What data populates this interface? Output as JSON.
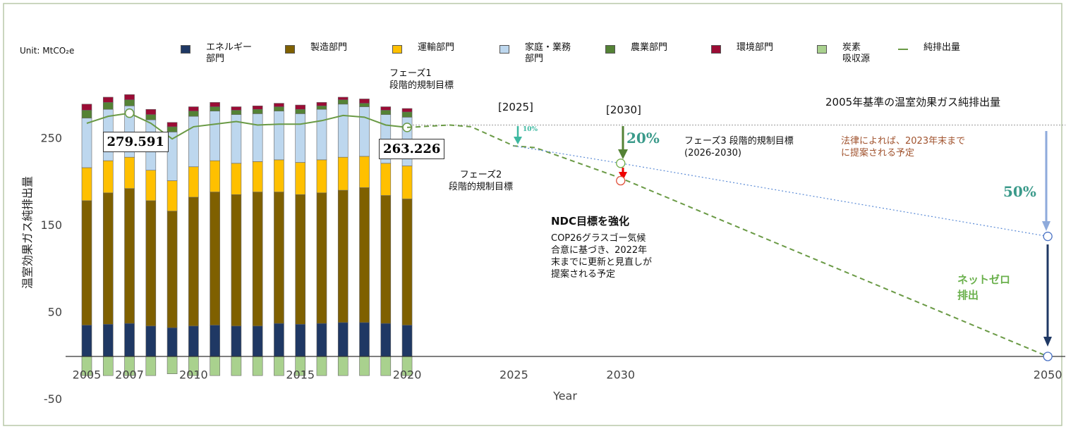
{
  "chart_data": {
    "type": "bar",
    "stacked": true,
    "unit_label": "Unit: MtCO₂e",
    "y_label": "温室効果ガス純排出量",
    "x_label": "Year",
    "x": [
      2005,
      2006,
      2007,
      2008,
      2009,
      2010,
      2011,
      2012,
      2013,
      2014,
      2015,
      2016,
      2017,
      2018,
      2019,
      2020
    ],
    "series": [
      {
        "name": "エネルギー\n部門",
        "color": "#1f3864",
        "values": [
          36,
          37,
          38,
          35,
          33,
          35,
          36,
          35,
          35,
          38,
          37,
          38,
          39,
          39,
          38,
          36
        ]
      },
      {
        "name": "製造部門",
        "color": "#7f6000",
        "values": [
          143,
          151,
          155,
          144,
          134,
          148,
          153,
          151,
          154,
          151,
          149,
          150,
          152,
          155,
          147,
          145
        ]
      },
      {
        "name": "運輸部門",
        "color": "#ffc000",
        "values": [
          38,
          37,
          36,
          35,
          35,
          35,
          36,
          36,
          35,
          37,
          37,
          38,
          38,
          36,
          37,
          38
        ]
      },
      {
        "name": "家庭・業務\n部門",
        "color": "#bdd7ee",
        "values": [
          57,
          59,
          59,
          58,
          56,
          58,
          57,
          56,
          55,
          56,
          56,
          58,
          61,
          57,
          56,
          56
        ]
      },
      {
        "name": "農業部門",
        "color": "#548235",
        "values": [
          9,
          8,
          7,
          6,
          6,
          6,
          5,
          5,
          5,
          5,
          5,
          4,
          5,
          4,
          5,
          6
        ]
      },
      {
        "name": "環境部門",
        "color": "#9b0c35",
        "values": [
          7,
          6,
          6,
          6,
          5,
          5,
          5,
          4,
          4,
          4,
          5,
          4,
          3,
          5,
          4,
          4
        ]
      },
      {
        "name": "炭素\n吸収源",
        "color": "#a9d18e",
        "values": [
          -22,
          -22,
          -22,
          -22,
          -20,
          -22,
          -22,
          -22,
          -22,
          -22,
          -22,
          -22,
          -22,
          -22,
          -22,
          -22
        ]
      },
      {
        "name": "純排出量",
        "color": "#6a9a45",
        "type": "line",
        "values": [
          268,
          276,
          279.591,
          268,
          250,
          264,
          267,
          270,
          266,
          267,
          267,
          271,
          277,
          275,
          266,
          263.226
        ]
      }
    ],
    "labeled_points": [
      2,
      15
    ],
    "projections": [
      {
        "color": "#6a9a45",
        "dash": "7,5",
        "x": [
          2020,
          2022,
          2023,
          2025,
          2026,
          2030,
          2050
        ],
        "values": [
          263.226,
          266,
          264,
          242,
          240,
          205,
          0
        ]
      },
      {
        "color": "#5b8bd6",
        "dash": "2,3",
        "x": [
          2025,
          2030,
          2050
        ],
        "values": [
          242,
          222,
          138
        ]
      }
    ],
    "reference_line": {
      "value": 266,
      "color": "#999"
    },
    "markers": [
      {
        "x": 2030,
        "value": 222,
        "color": "#70ad47"
      },
      {
        "x": 2030,
        "value": 202,
        "color": "#e0503a"
      },
      {
        "x": 2050,
        "value": 138,
        "color": "#4a72c4"
      },
      {
        "x": 2050,
        "value": 0,
        "color": "#4a72c4"
      }
    ],
    "annotations": [
      "フェーズ1\n段階的規制目標",
      "[2025]",
      "[2030]",
      "2005年基準の温室効果ガス純排出量",
      "10%",
      "20%",
      "フェーズ3 段階的規制目標\n(2026-2030)",
      "法律によれば、2023年末まで\nに提案される予定",
      "フェーズ2\n段階的規制目標",
      "50%",
      "NDC目標を強化",
      "COP26グラスゴー気候\n合意に基づき、2022年\n末までに更新と見直しが\n提案される予定",
      "ネットゼロ\n排出"
    ],
    "xlim": [
      2004,
      2050.5
    ],
    "ylim": [
      -60,
      305
    ],
    "xticks": [
      2005,
      2007,
      2010,
      2015,
      2020,
      2025,
      2030,
      2050
    ],
    "yticks": [
      250,
      150,
      50,
      -50
    ],
    "grid": false
  }
}
